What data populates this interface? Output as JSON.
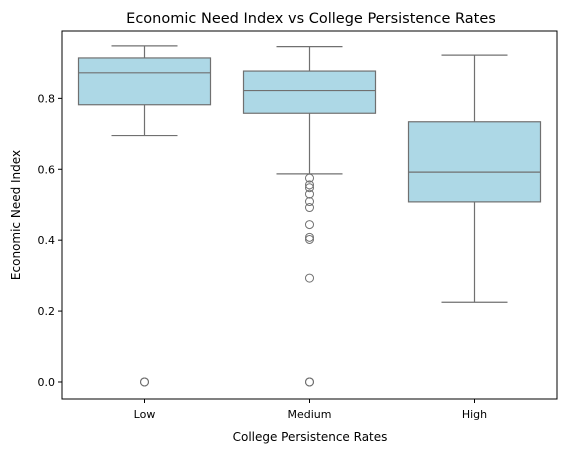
{
  "chart_data": {
    "type": "box",
    "title": "Economic Need Index vs College Persistence Rates",
    "xlabel": "College Persistence Rates",
    "ylabel": "Economic Need Index",
    "ylim": [
      -0.048,
      0.99
    ],
    "yticks": [
      0.0,
      0.2,
      0.4,
      0.6,
      0.8
    ],
    "ytick_labels": [
      "0.0",
      "0.2",
      "0.4",
      "0.6",
      "0.8"
    ],
    "categories": [
      "Low",
      "Medium",
      "High"
    ],
    "boxes": [
      {
        "category": "Low",
        "whisker_low": 0.695,
        "q1": 0.782,
        "median": 0.872,
        "q3": 0.914,
        "whisker_high": 0.948,
        "outliers": [
          0.0,
          0.0,
          0.0
        ]
      },
      {
        "category": "Medium",
        "whisker_low": 0.587,
        "q1": 0.758,
        "median": 0.822,
        "q3": 0.877,
        "whisker_high": 0.946,
        "outliers": [
          0.575,
          0.556,
          0.548,
          0.53,
          0.509,
          0.492,
          0.444,
          0.408,
          0.402,
          0.293,
          0.0,
          0.0,
          0.0
        ]
      },
      {
        "category": "High",
        "whisker_low": 0.225,
        "q1": 0.508,
        "median": 0.592,
        "q3": 0.734,
        "whisker_high": 0.922,
        "outliers": []
      }
    ],
    "box_color": "#add8e6",
    "line_color": "#707070",
    "grid": false,
    "legend": "none"
  }
}
